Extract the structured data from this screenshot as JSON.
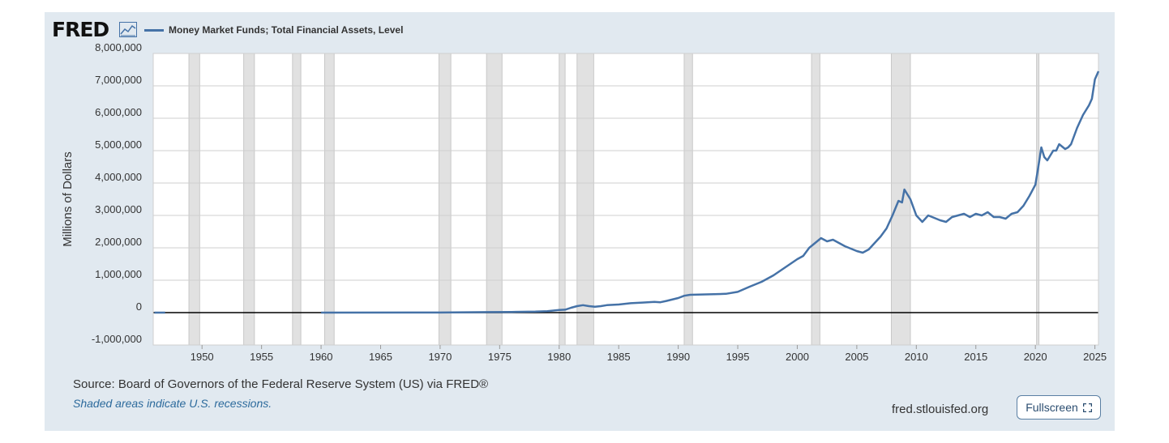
{
  "header": {
    "logo_text": "FRED",
    "logo_icon": "line-chart-icon",
    "series_title": "Money Market Funds; Total Financial Assets, Level",
    "series_color": "#4572a7"
  },
  "chart_data": {
    "type": "line",
    "title": "Money Market Funds; Total Financial Assets, Level",
    "ylabel": "Millions of Dollars",
    "xlabel": "",
    "xlim": [
      1945.9,
      2025.3
    ],
    "ylim": [
      -1000000,
      8000000
    ],
    "x_ticks": [
      1950,
      1955,
      1960,
      1965,
      1970,
      1975,
      1980,
      1985,
      1990,
      1995,
      2000,
      2005,
      2010,
      2015,
      2020,
      2025
    ],
    "y_ticks": [
      -1000000,
      0,
      1000000,
      2000000,
      3000000,
      4000000,
      5000000,
      6000000,
      7000000,
      8000000
    ],
    "y_tick_labels": [
      "-1,000,000",
      "0",
      "1,000,000",
      "2,000,000",
      "3,000,000",
      "4,000,000",
      "5,000,000",
      "6,000,000",
      "7,000,000",
      "8,000,000"
    ],
    "grid": true,
    "legend_position": "top-left",
    "recessions": [
      [
        1948.9,
        1949.8
      ],
      [
        1953.5,
        1954.4
      ],
      [
        1957.6,
        1958.3
      ],
      [
        1960.3,
        1961.1
      ],
      [
        1969.9,
        1970.9
      ],
      [
        1973.9,
        1975.2
      ],
      [
        1980.0,
        1980.5
      ],
      [
        1981.5,
        1982.9
      ],
      [
        1990.5,
        1991.2
      ],
      [
        2001.2,
        2001.9
      ],
      [
        2007.9,
        2009.5
      ],
      [
        2020.1,
        2020.3
      ]
    ],
    "series": [
      {
        "name": "Money Market Funds; Total Financial Assets, Level",
        "x": [
          1946.0,
          1946.9,
          1952.0,
          1960.0,
          1970.0,
          1974.0,
          1976.0,
          1978.0,
          1979.0,
          1980.0,
          1980.5,
          1981.0,
          1981.5,
          1982.0,
          1982.5,
          1983.0,
          1983.5,
          1984.0,
          1985.0,
          1986.0,
          1987.0,
          1988.0,
          1988.5,
          1989.0,
          1990.0,
          1990.5,
          1991.0,
          1992.0,
          1993.0,
          1994.0,
          1995.0,
          1996.0,
          1997.0,
          1998.0,
          1999.0,
          2000.0,
          2000.5,
          2001.0,
          2001.5,
          2002.0,
          2002.5,
          2003.0,
          2004.0,
          2005.0,
          2005.5,
          2006.0,
          2007.0,
          2007.5,
          2008.0,
          2008.5,
          2008.8,
          2009.0,
          2009.5,
          2010.0,
          2010.5,
          2011.0,
          2012.0,
          2012.5,
          2013.0,
          2014.0,
          2014.5,
          2015.0,
          2015.5,
          2016.0,
          2016.5,
          2017.0,
          2017.5,
          2018.0,
          2018.5,
          2019.0,
          2019.5,
          2020.0,
          2020.25,
          2020.5,
          2020.75,
          2021.0,
          2021.5,
          2021.75,
          2022.0,
          2022.5,
          2022.75,
          2023.0,
          2023.5,
          2024.0,
          2024.5,
          2024.75,
          2025.0,
          2025.3
        ],
        "values": [
          0,
          0,
          null,
          1000,
          3000,
          15000,
          20000,
          30000,
          45000,
          80000,
          90000,
          150000,
          200000,
          230000,
          200000,
          180000,
          200000,
          230000,
          250000,
          290000,
          310000,
          330000,
          320000,
          360000,
          450000,
          520000,
          550000,
          560000,
          570000,
          580000,
          640000,
          800000,
          950000,
          1150000,
          1400000,
          1650000,
          1750000,
          2000000,
          2150000,
          2300000,
          2200000,
          2250000,
          2050000,
          1900000,
          1850000,
          1950000,
          2350000,
          2600000,
          3000000,
          3450000,
          3400000,
          3800000,
          3500000,
          3000000,
          2800000,
          3000000,
          2850000,
          2800000,
          2950000,
          3050000,
          2950000,
          3050000,
          3000000,
          3100000,
          2950000,
          2950000,
          2900000,
          3050000,
          3100000,
          3300000,
          3600000,
          3950000,
          4500000,
          5100000,
          4800000,
          4700000,
          5000000,
          5000000,
          5200000,
          5050000,
          5100000,
          5200000,
          5700000,
          6100000,
          6400000,
          6600000,
          7200000,
          7450000
        ]
      }
    ]
  },
  "footer": {
    "source": "Source: Board of Governors of the Federal Reserve System (US) via FRED®",
    "note": "Shaded areas indicate U.S. recessions.",
    "site": "fred.stlouisfed.org",
    "fullscreen_label": "Fullscreen"
  }
}
